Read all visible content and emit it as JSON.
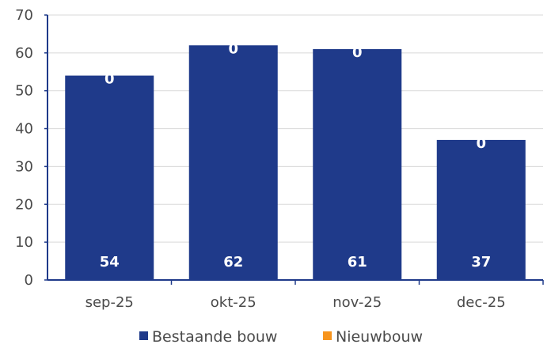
{
  "chart_data": {
    "type": "bar",
    "stacked": true,
    "categories": [
      "sep-25",
      "okt-25",
      "nov-25",
      "dec-25"
    ],
    "series": [
      {
        "name": "Bestaande bouw",
        "values": [
          54,
          62,
          61,
          37
        ],
        "color": "#1f3a8a"
      },
      {
        "name": "Nieuwbouw",
        "values": [
          0,
          0,
          0,
          0
        ],
        "color": "#f7941d"
      }
    ],
    "ylim": [
      0,
      70
    ],
    "yticks": [
      0,
      10,
      20,
      30,
      40,
      50,
      60,
      70
    ],
    "grid": true,
    "legend": "bottom"
  }
}
